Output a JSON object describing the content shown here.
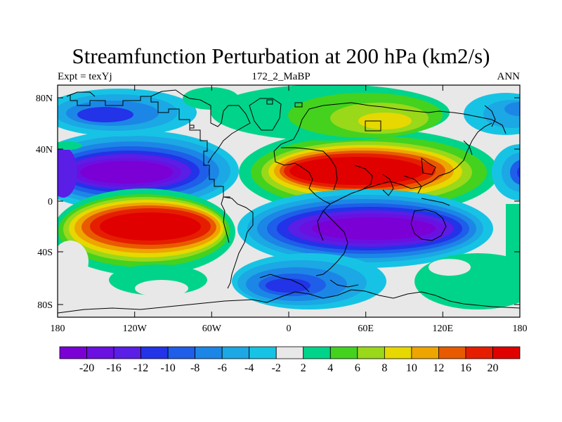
{
  "title": "Streamfunction Perturbation at 200 hPa (km2/s)",
  "left_label": "Expt = texYj",
  "center_label": "172_2_MaBP",
  "right_label": "ANN",
  "y_ticks": [
    "80N",
    "40N",
    "0",
    "40S",
    "80S"
  ],
  "x_ticks": [
    "180",
    "120W",
    "60W",
    "0",
    "60E",
    "120E",
    "180"
  ],
  "colorbar": {
    "labels": [
      "-20",
      "-16",
      "-12",
      "-10",
      "-8",
      "-6",
      "-4",
      "-2",
      "2",
      "4",
      "6",
      "8",
      "10",
      "12",
      "16",
      "20"
    ],
    "colors": [
      "#7a00d6",
      "#6a10e0",
      "#5a1ee6",
      "#2233e8",
      "#1e5ee8",
      "#1c86e6",
      "#1ba8e4",
      "#17c3e4",
      "#e8e8e8",
      "#00d48a",
      "#44d21e",
      "#9ad81a",
      "#e6d800",
      "#eea500",
      "#e85a00",
      "#e61e00",
      "#e00000"
    ]
  }
}
